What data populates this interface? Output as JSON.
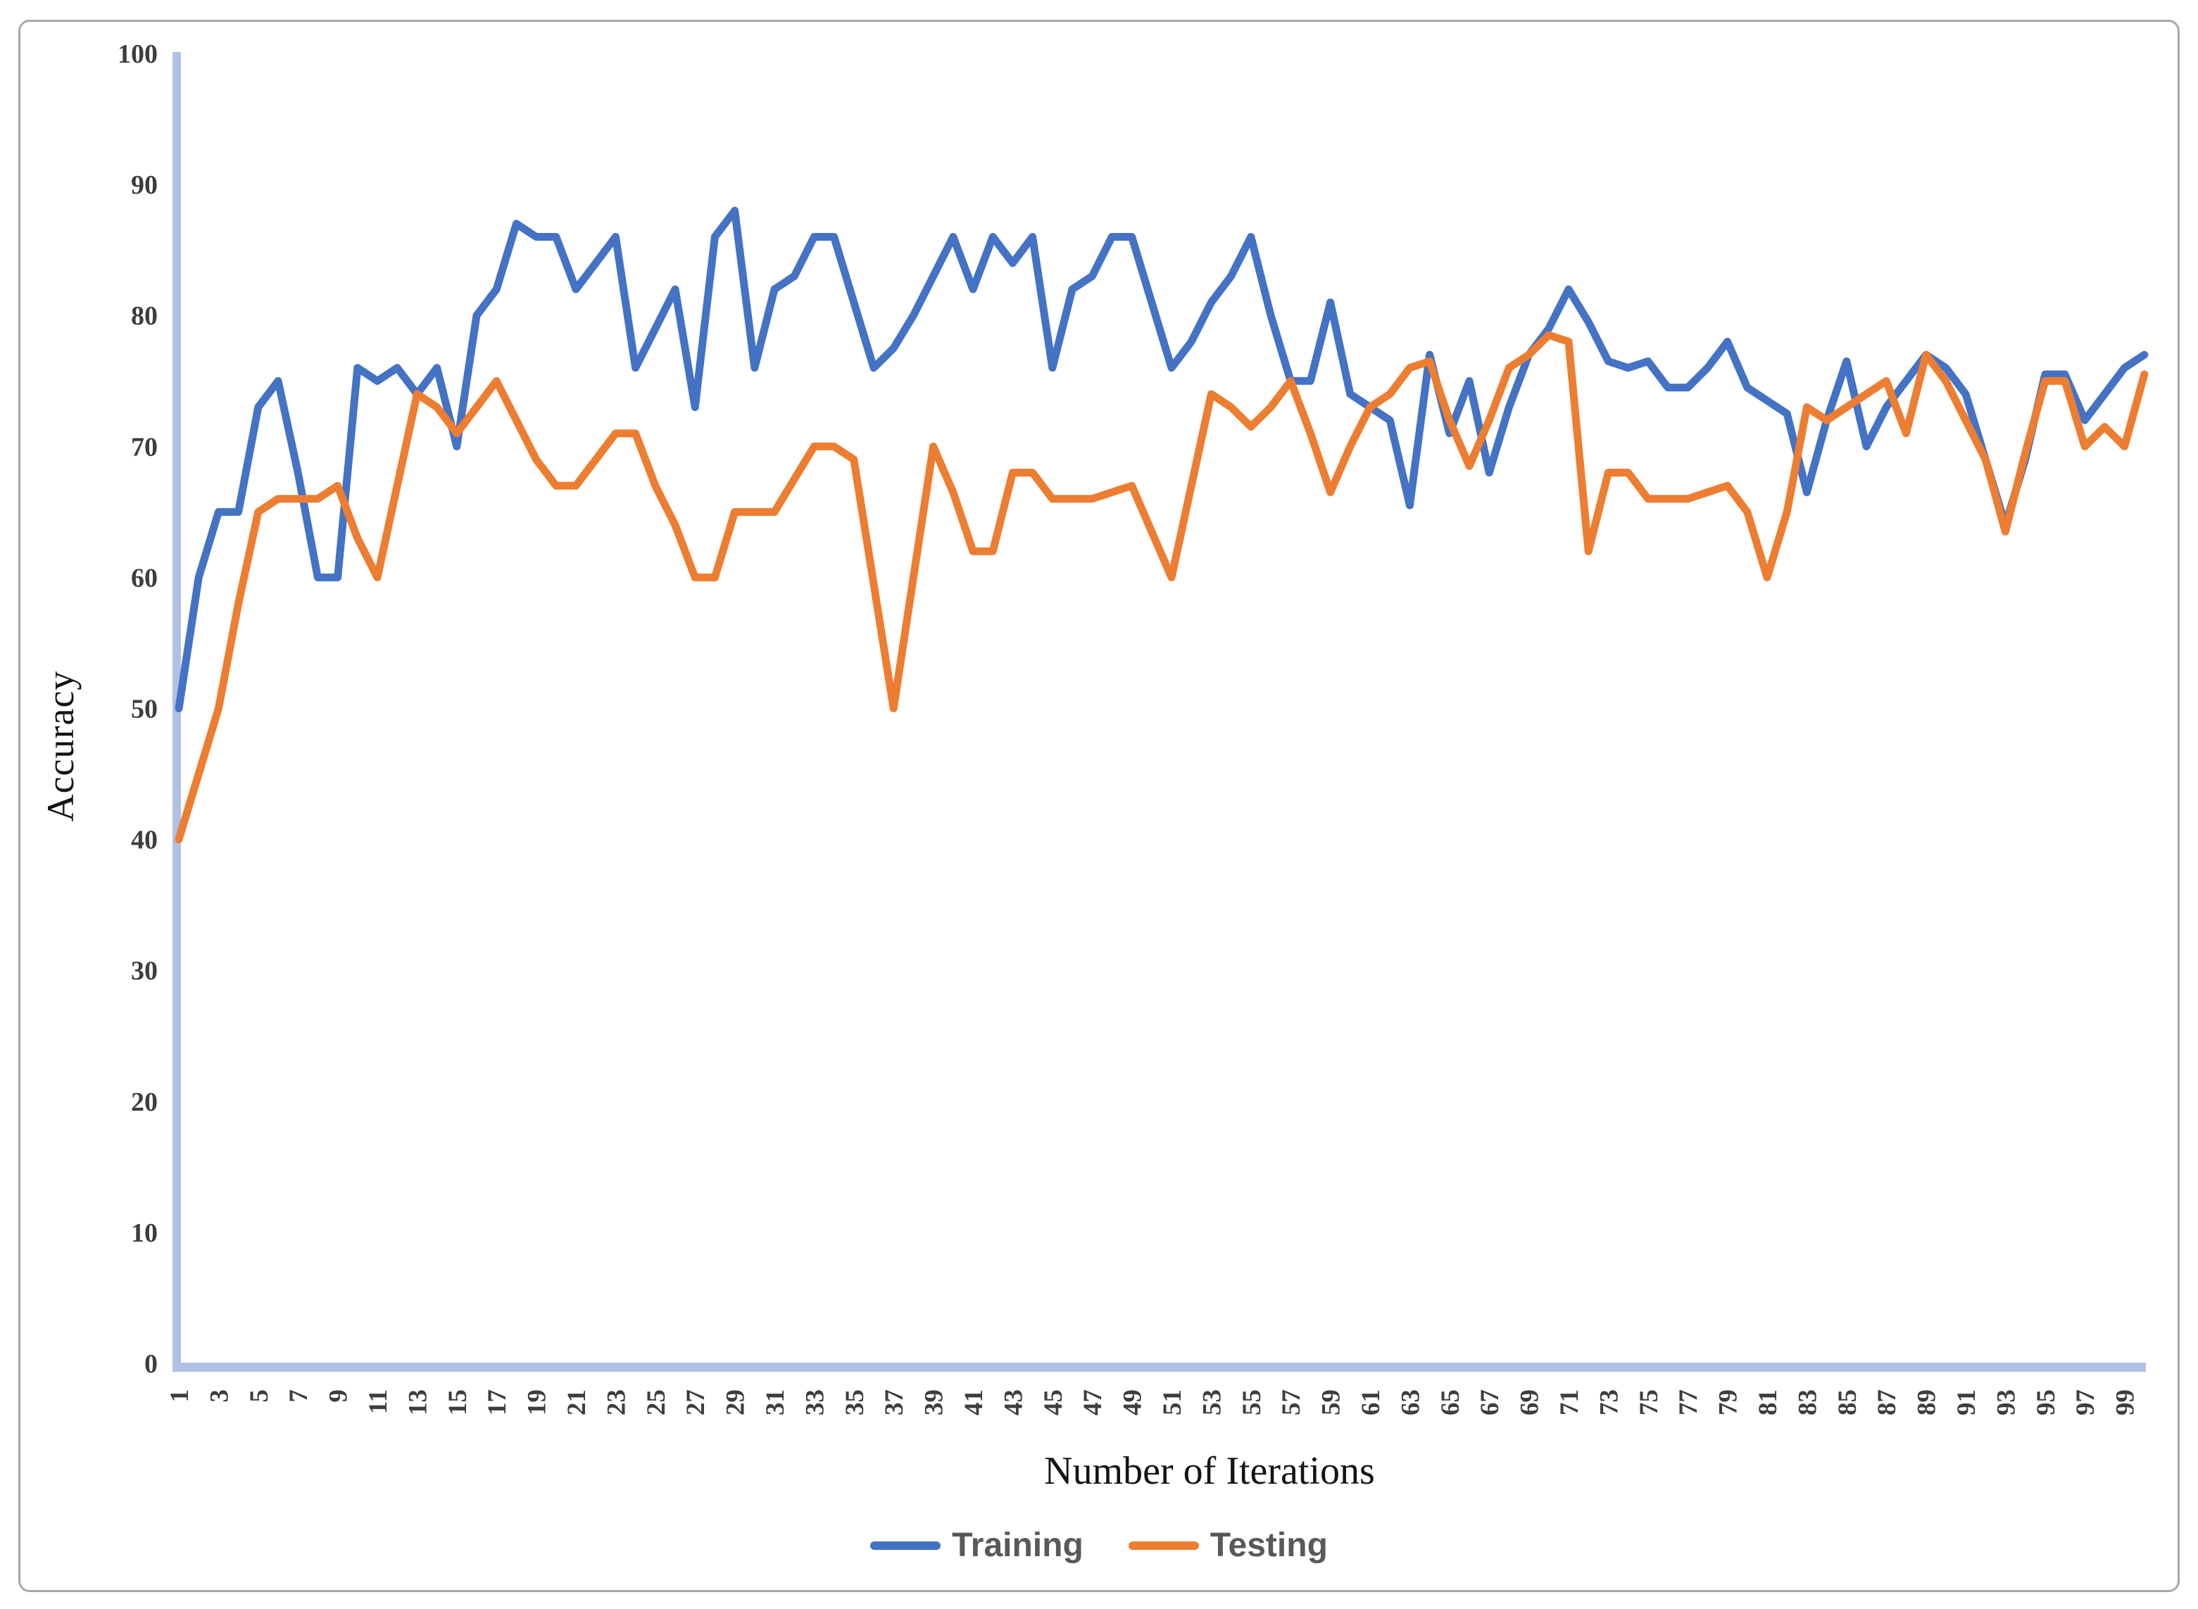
{
  "figure": {
    "y_axis_title": "Accuracy",
    "x_axis_title": "Number of Iterations"
  },
  "legend": {
    "items": [
      {
        "label": "Training",
        "color": "#4472C4"
      },
      {
        "label": "Testing",
        "color": "#ED7D31"
      }
    ]
  },
  "chart_data": {
    "type": "line",
    "title": "",
    "xlabel": "Number of Iterations",
    "ylabel": "Accuracy",
    "ylim": [
      0,
      100
    ],
    "y_ticks": [
      0,
      10,
      20,
      30,
      40,
      50,
      60,
      70,
      80,
      90,
      100
    ],
    "x_range": [
      1,
      100
    ],
    "x_tick_labels": [
      1,
      3,
      5,
      7,
      9,
      11,
      13,
      15,
      17,
      19,
      21,
      23,
      25,
      27,
      29,
      31,
      33,
      35,
      37,
      39,
      41,
      43,
      45,
      47,
      49,
      51,
      53,
      55,
      57,
      59,
      61,
      63,
      65,
      67,
      69,
      71,
      73,
      75,
      77,
      79,
      81,
      83,
      85,
      87,
      89,
      91,
      93,
      95,
      97,
      99
    ],
    "grid": false,
    "legend_position": "bottom",
    "axis_color": "#b0c0e4",
    "tick_label_color": "#3d3d3d",
    "series": [
      {
        "name": "Training",
        "color": "#4472C4",
        "values": [
          50,
          60,
          65,
          65,
          73,
          75,
          68,
          60,
          60,
          76,
          75,
          76,
          74,
          76,
          70,
          80,
          82,
          87,
          86,
          86,
          82,
          84,
          86,
          76,
          79,
          82,
          73,
          86,
          88,
          76,
          82,
          83,
          86,
          86,
          81,
          76,
          77.5,
          80,
          83,
          86,
          82,
          86,
          84,
          86,
          76,
          82,
          83,
          86,
          86,
          81,
          76,
          78,
          81,
          83,
          86,
          80,
          75,
          75,
          81,
          74,
          73,
          72,
          65.5,
          77,
          71,
          75,
          68,
          73,
          77,
          79,
          82,
          79.5,
          76.5,
          76,
          76.5,
          74.5,
          74.5,
          76,
          78,
          74.5,
          73.5,
          72.5,
          66.5,
          72,
          76.5,
          70,
          73,
          75,
          77,
          76,
          74,
          69,
          64,
          69,
          75.5,
          75.5,
          72,
          74,
          76,
          77
        ]
      },
      {
        "name": "Testing",
        "color": "#ED7D31",
        "values": [
          40,
          45,
          50,
          58,
          65,
          66,
          66,
          66,
          67,
          63,
          60,
          67,
          74,
          73,
          71,
          73,
          75,
          72,
          69,
          67,
          67,
          69,
          71,
          71,
          67,
          64,
          60,
          60,
          65,
          65,
          65,
          67.5,
          70,
          70,
          69,
          59.5,
          50,
          60,
          70,
          66.5,
          62,
          62,
          68,
          68,
          66,
          66,
          66,
          66.5,
          67,
          63.5,
          60,
          67,
          74,
          73,
          71.5,
          73,
          75,
          71,
          66.5,
          70,
          73,
          74,
          76,
          76.5,
          72,
          68.5,
          72,
          76,
          77,
          78.5,
          78,
          62,
          68,
          68,
          66,
          66,
          66,
          66.5,
          67,
          65,
          60,
          65,
          73,
          72,
          73,
          74,
          75,
          71,
          77,
          75,
          72,
          69,
          63.5,
          69.5,
          75,
          75,
          70,
          71.5,
          70,
          75.5
        ]
      }
    ]
  }
}
